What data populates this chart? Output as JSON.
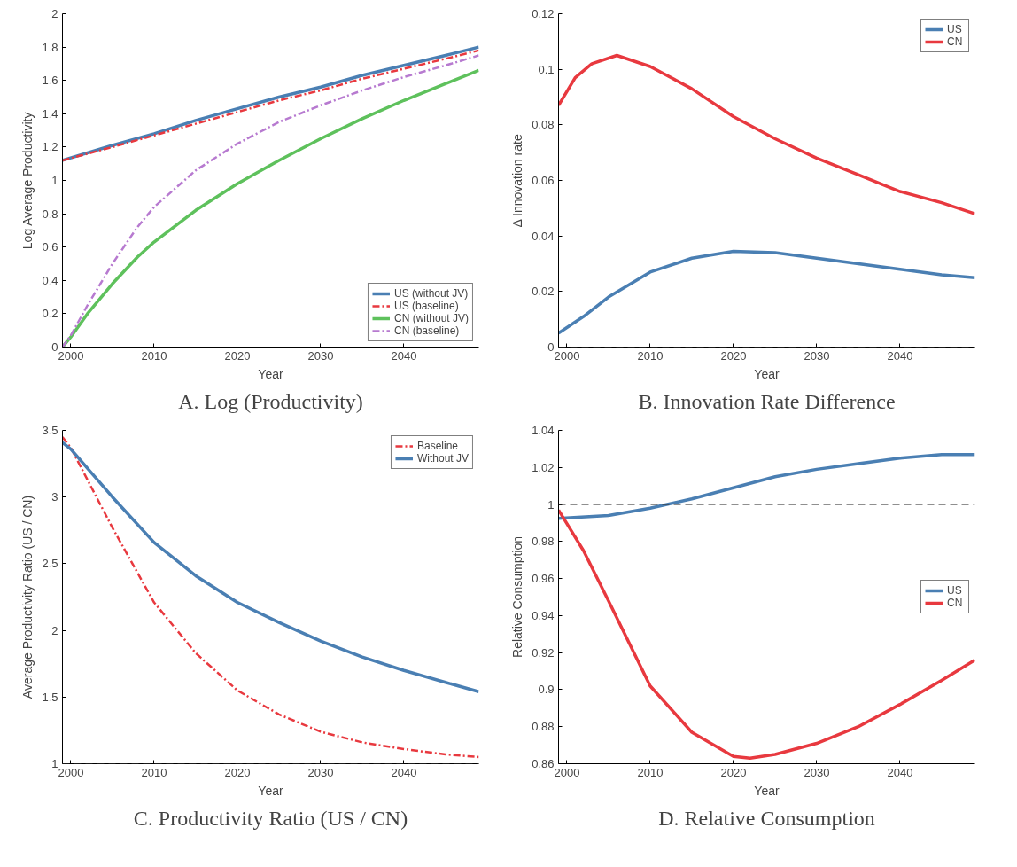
{
  "chart_data": [
    {
      "type": "line",
      "title": "A. Log (Productivity)",
      "xlabel": "Year",
      "ylabel": "Log Average Productivity",
      "xlim": [
        1999,
        2049
      ],
      "xticks": [
        2000,
        2010,
        2020,
        2030,
        2040
      ],
      "ylim": [
        0,
        2
      ],
      "yticks": [
        0,
        0.2,
        0.4,
        0.6,
        0.8,
        1,
        1.2,
        1.4,
        1.6,
        1.8,
        2
      ],
      "grid": false,
      "legend": "bottom right",
      "series": [
        {
          "name": "US (without JV)",
          "color": "#4a7fb3",
          "line_style": "solid",
          "x": [
            1999,
            2005,
            2010,
            2015,
            2020,
            2025,
            2030,
            2035,
            2040,
            2045,
            2049
          ],
          "values": [
            1.12,
            1.21,
            1.28,
            1.36,
            1.43,
            1.5,
            1.56,
            1.63,
            1.69,
            1.75,
            1.8
          ]
        },
        {
          "name": "US (baseline)",
          "color": "#e8393f",
          "line_style": "dashed",
          "x": [
            1999,
            2005,
            2010,
            2015,
            2020,
            2025,
            2030,
            2035,
            2040,
            2045,
            2049
          ],
          "values": [
            1.12,
            1.2,
            1.27,
            1.34,
            1.41,
            1.48,
            1.54,
            1.61,
            1.67,
            1.73,
            1.78
          ]
        },
        {
          "name": "CN (without JV)",
          "color": "#5ec15c",
          "line_style": "solid",
          "x": [
            1999,
            2000,
            2002,
            2005,
            2008,
            2010,
            2015,
            2020,
            2025,
            2030,
            2035,
            2040,
            2045,
            2049
          ],
          "values": [
            0,
            0.06,
            0.2,
            0.38,
            0.54,
            0.63,
            0.82,
            0.98,
            1.12,
            1.25,
            1.37,
            1.48,
            1.58,
            1.66
          ]
        },
        {
          "name": "CN (baseline)",
          "color": "#b77ad0",
          "line_style": "dashed",
          "x": [
            1999,
            2000,
            2002,
            2005,
            2008,
            2010,
            2015,
            2020,
            2025,
            2030,
            2035,
            2040,
            2045,
            2049
          ],
          "values": [
            0,
            0.07,
            0.25,
            0.5,
            0.72,
            0.84,
            1.06,
            1.22,
            1.35,
            1.45,
            1.54,
            1.62,
            1.69,
            1.75
          ]
        }
      ]
    },
    {
      "type": "line",
      "title": "B. Innovation Rate Difference",
      "xlabel": "Year",
      "ylabel": "Δ Innovation rate",
      "xlim": [
        1999,
        2049
      ],
      "xticks": [
        2000,
        2010,
        2020,
        2030,
        2040
      ],
      "ylim": [
        0,
        0.12
      ],
      "yticks": [
        0,
        0.02,
        0.04,
        0.06,
        0.08,
        0.1,
        0.12
      ],
      "grid": false,
      "legend": "top right",
      "ref_lines": [
        {
          "axis": "y",
          "value": 0,
          "label": null,
          "color": "#333333",
          "line_style": "dashed"
        }
      ],
      "series": [
        {
          "name": "US",
          "color": "#4a7fb3",
          "line_style": "solid",
          "x": [
            1999,
            2002,
            2005,
            2010,
            2015,
            2020,
            2025,
            2030,
            2035,
            2040,
            2045,
            2049
          ],
          "values": [
            0.005,
            0.011,
            0.018,
            0.027,
            0.032,
            0.0345,
            0.034,
            0.032,
            0.03,
            0.028,
            0.026,
            0.025
          ]
        },
        {
          "name": "CN",
          "color": "#e8393f",
          "line_style": "solid",
          "x": [
            1999,
            2001,
            2003,
            2006,
            2010,
            2015,
            2020,
            2025,
            2030,
            2035,
            2040,
            2045,
            2049
          ],
          "values": [
            0.087,
            0.097,
            0.102,
            0.105,
            0.101,
            0.093,
            0.083,
            0.075,
            0.068,
            0.062,
            0.056,
            0.052,
            0.048
          ]
        }
      ]
    },
    {
      "type": "line",
      "title": "C. Productivity Ratio (US / CN)",
      "xlabel": "Year",
      "ylabel": "Average Productivity Ratio (US / CN)",
      "xlim": [
        1999,
        2049
      ],
      "xticks": [
        2000,
        2010,
        2020,
        2030,
        2040
      ],
      "ylim": [
        1,
        3.5
      ],
      "yticks": [
        1,
        1.5,
        2,
        2.5,
        3,
        3.5
      ],
      "grid": false,
      "legend": "top right",
      "ref_lines": [
        {
          "axis": "y",
          "value": 1,
          "label": null,
          "color": "#333333",
          "line_style": "dashed"
        }
      ],
      "series": [
        {
          "name": "Baseline",
          "color": "#e8393f",
          "line_style": "dashed",
          "x": [
            1999,
            2000,
            2005,
            2010,
            2015,
            2020,
            2025,
            2030,
            2035,
            2040,
            2045,
            2049
          ],
          "values": [
            3.45,
            3.37,
            2.77,
            2.21,
            1.83,
            1.55,
            1.37,
            1.24,
            1.16,
            1.11,
            1.07,
            1.05
          ]
        },
        {
          "name": "Without JV",
          "color": "#4a7fb3",
          "line_style": "solid",
          "x": [
            1999,
            2000,
            2005,
            2010,
            2015,
            2020,
            2025,
            2030,
            2035,
            2040,
            2045,
            2049
          ],
          "values": [
            3.41,
            3.36,
            3.0,
            2.66,
            2.41,
            2.21,
            2.06,
            1.92,
            1.8,
            1.7,
            1.61,
            1.54
          ]
        }
      ]
    },
    {
      "type": "line",
      "title": "D. Relative Consumption",
      "xlabel": "Year",
      "ylabel": "Relative Consumption",
      "xlim": [
        1999,
        2049
      ],
      "xticks": [
        2000,
        2010,
        2020,
        2030,
        2040
      ],
      "ylim": [
        0.86,
        1.04
      ],
      "yticks": [
        0.86,
        0.88,
        0.9,
        0.92,
        0.94,
        0.96,
        0.98,
        1,
        1.02,
        1.04
      ],
      "grid": false,
      "legend": "right",
      "ref_lines": [
        {
          "axis": "y",
          "value": 1,
          "label": null,
          "color": "#333333",
          "line_style": "dashed"
        }
      ],
      "series": [
        {
          "name": "US",
          "color": "#4a7fb3",
          "line_style": "solid",
          "x": [
            1999,
            2005,
            2010,
            2015,
            2020,
            2025,
            2030,
            2035,
            2040,
            2045,
            2049
          ],
          "values": [
            0.9925,
            0.994,
            0.998,
            1.003,
            1.009,
            1.015,
            1.019,
            1.022,
            1.025,
            1.027,
            1.027
          ]
        },
        {
          "name": "CN",
          "color": "#e8393f",
          "line_style": "solid",
          "x": [
            1999,
            2002,
            2005,
            2010,
            2015,
            2020,
            2022,
            2025,
            2030,
            2035,
            2040,
            2045,
            2049
          ],
          "values": [
            0.997,
            0.975,
            0.948,
            0.902,
            0.877,
            0.864,
            0.863,
            0.865,
            0.871,
            0.88,
            0.892,
            0.905,
            0.916
          ]
        }
      ]
    }
  ]
}
